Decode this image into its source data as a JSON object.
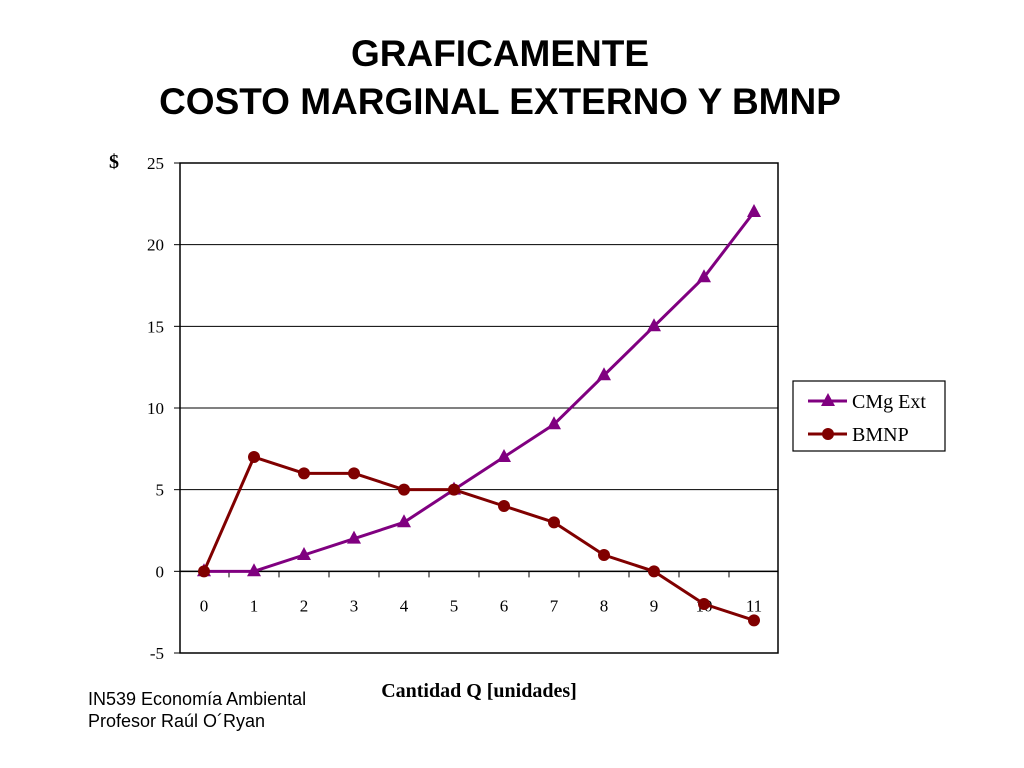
{
  "slide": {
    "title_line1": "GRAFICAMENTE",
    "title_line2": "COSTO MARGINAL EXTERNO Y BMNP"
  },
  "footer": {
    "line1": "IN539 Economía Ambiental",
    "line2": "Profesor Raúl O´Ryan"
  },
  "chart_data": {
    "type": "line",
    "title": "",
    "xlabel": "Cantidad Q [unidades]",
    "ylabel": "$",
    "x": [
      0,
      1,
      2,
      3,
      4,
      5,
      6,
      7,
      8,
      9,
      10,
      11
    ],
    "ylim": [
      -5,
      25
    ],
    "yticks": [
      -5,
      0,
      5,
      10,
      15,
      20,
      25
    ],
    "grid": "horizontal",
    "legend_position": "right",
    "series": [
      {
        "name": "CMg Ext",
        "values": [
          0,
          0,
          1,
          2,
          3,
          5,
          7,
          9,
          12,
          15,
          18,
          22
        ],
        "color": "#800080",
        "marker": "triangle"
      },
      {
        "name": "BMNP",
        "values": [
          0,
          7,
          6,
          6,
          5,
          5,
          4,
          3,
          1,
          0,
          -2,
          -3
        ],
        "color": "#800000",
        "marker": "circle"
      }
    ]
  }
}
